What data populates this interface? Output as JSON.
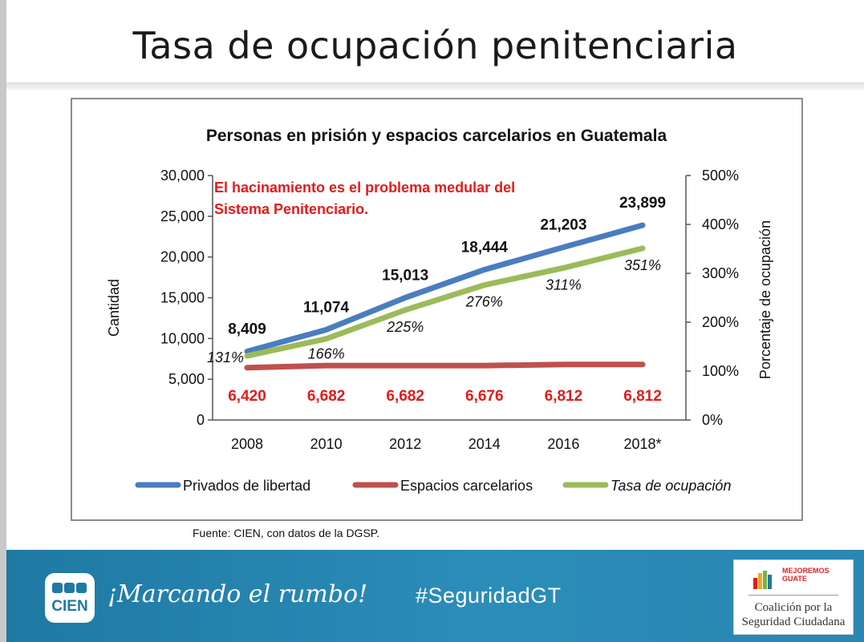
{
  "slide_title": "Tasa de ocupación penitenciaria",
  "annotation": [
    "El hacinamiento es el problema medular del",
    "Sistema Penitenciario."
  ],
  "source": "Fuente: CIEN, con datos de la DGSP.",
  "footer": {
    "logo_text": "CIEN",
    "slogan": "¡Marcando el rumbo!",
    "hashtag": "#SeguridadGT",
    "partner_brand": "MEJOREMOS GUATE",
    "partner_name": [
      "Coalición por la",
      "Seguridad Ciudadana"
    ]
  },
  "colors": {
    "privados": "#4a7dc0",
    "espacios": "#c0504d",
    "tasa": "#9bbb59",
    "annotation": "#e31b1b",
    "footer": "#1f79a3"
  },
  "chart_data": {
    "type": "line",
    "title": "Personas en prisión y espacios carcelarios en Guatemala",
    "categories": [
      "2008",
      "2010",
      "2012",
      "2014",
      "2016",
      "2018*"
    ],
    "ylabel": "Cantidad",
    "y2label": "Porcentaje de ocupación",
    "ylim": [
      0,
      30000
    ],
    "y2lim": [
      0,
      500
    ],
    "yticks": [
      "0",
      "5,000",
      "10,000",
      "15,000",
      "20,000",
      "25,000",
      "30,000"
    ],
    "y2ticks": [
      "0%",
      "100%",
      "200%",
      "300%",
      "400%",
      "500%"
    ],
    "series": [
      {
        "name": "Privados de libertad",
        "axis": "left",
        "values": [
          8409,
          11074,
          15013,
          18444,
          21203,
          23899
        ],
        "labels": [
          "8,409",
          "11,074",
          "15,013",
          "18,444",
          "21,203",
          "23,899"
        ]
      },
      {
        "name": "Espacios carcelarios",
        "axis": "left",
        "values": [
          6420,
          6682,
          6682,
          6676,
          6812,
          6812
        ],
        "labels": [
          "6,420",
          "6,682",
          "6,682",
          "6,676",
          "6,812",
          "6,812"
        ]
      },
      {
        "name": "Tasa de ocupación",
        "axis": "right",
        "values": [
          131,
          166,
          225,
          276,
          311,
          351
        ],
        "labels": [
          "131%",
          "166%",
          "225%",
          "276%",
          "311%",
          "351%"
        ]
      }
    ],
    "legend_position": "bottom",
    "grid": false
  }
}
